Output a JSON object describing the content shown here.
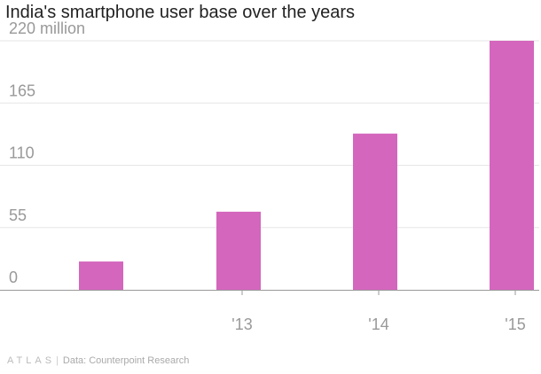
{
  "chart_data": {
    "type": "bar",
    "title": "India's smartphone user base over the years",
    "categories": [
      "",
      "'13",
      "'14",
      "'15"
    ],
    "values": [
      25,
      69,
      138,
      220
    ],
    "y_ticks": [
      "0",
      "55",
      "110",
      "165",
      "220 million"
    ],
    "ylim": [
      0,
      220
    ],
    "bar_color": "#d466bd",
    "grid": true
  },
  "footer": {
    "brand": "ATLAS",
    "separator": "|",
    "source": "Data: Counterpoint Research"
  }
}
